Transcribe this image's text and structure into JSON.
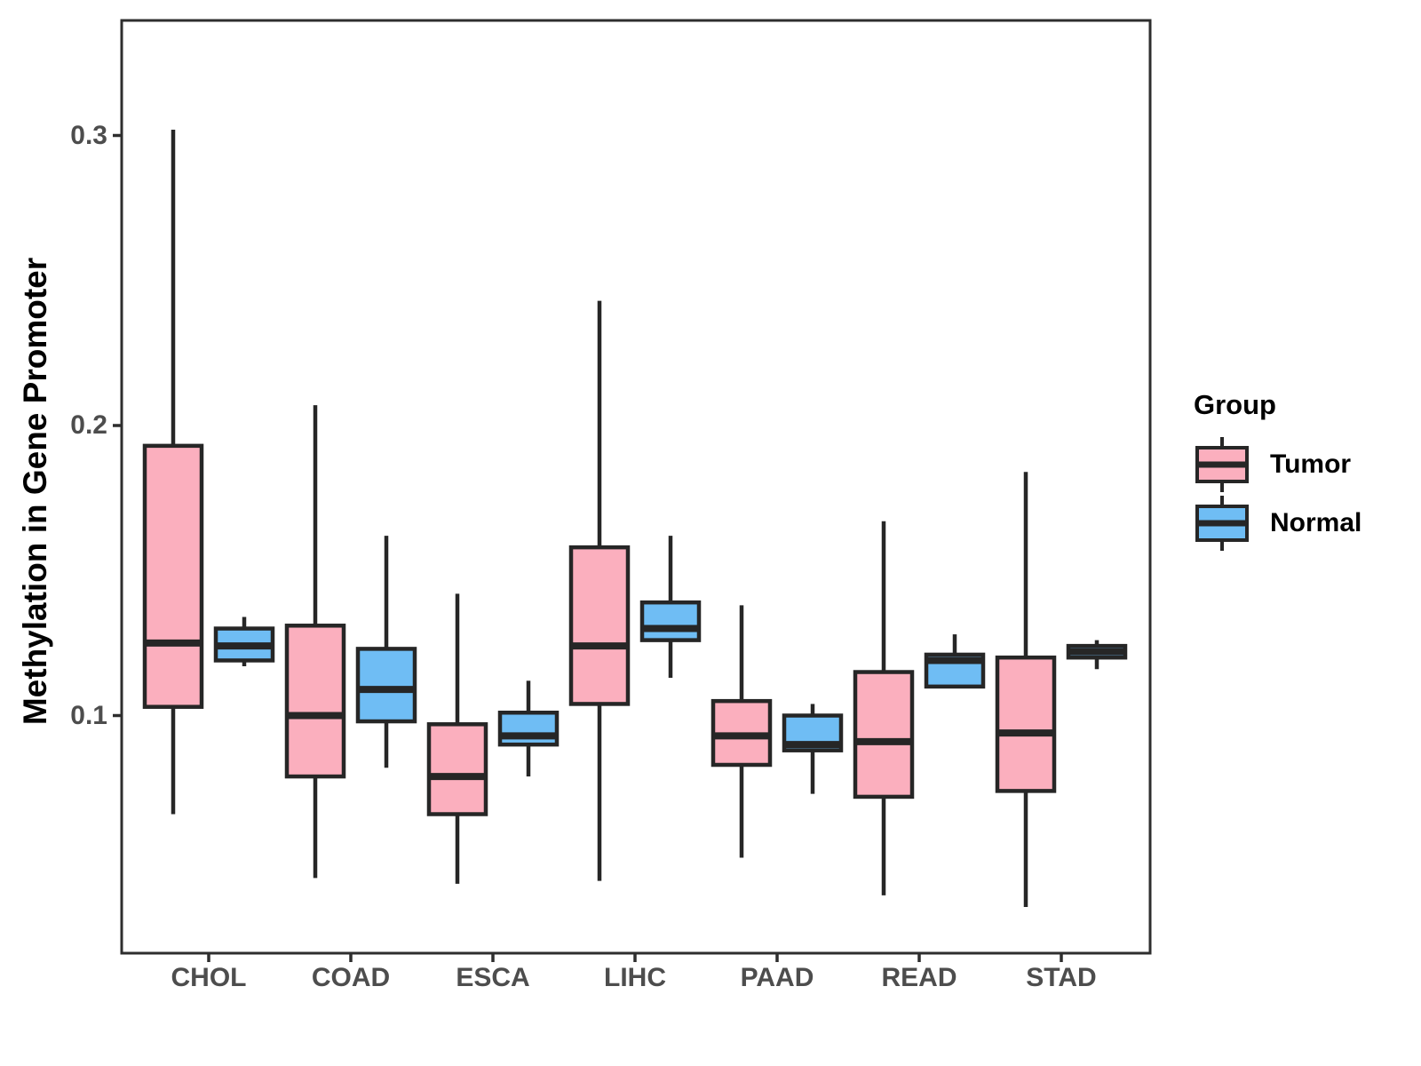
{
  "chart_data": {
    "type": "boxplot",
    "title": "",
    "xlabel": "",
    "ylabel": "Methylation in Gene Promoter",
    "categories": [
      "CHOL",
      "COAD",
      "ESCA",
      "LIHC",
      "PAAD",
      "READ",
      "STAD"
    ],
    "y_ticks": [
      {
        "label": "0.1",
        "value": 0.1
      },
      {
        "label": "0.2",
        "value": 0.2
      },
      {
        "label": "0.3",
        "value": 0.3
      }
    ],
    "ylim": [
      0.018,
      0.34
    ],
    "grid": "off",
    "legend_position": "right",
    "legend": {
      "title": "Group",
      "entries": [
        {
          "label": "Tumor",
          "fill": "#FBAFBE"
        },
        {
          "label": "Normal",
          "fill": "#6FBDF4"
        }
      ]
    },
    "colors": {
      "tumor_fill": "#FBAFBE",
      "normal_fill": "#6FBDF4",
      "box_stroke": "#262626",
      "axis_text": "#4D4D4D",
      "panel_border": "#2E2E2E"
    },
    "series": [
      {
        "name": "Tumor",
        "fill": "#FBAFBE",
        "boxes": [
          {
            "category": "CHOL",
            "min": 0.066,
            "q1": 0.103,
            "median": 0.125,
            "q3": 0.193,
            "max": 0.302
          },
          {
            "category": "COAD",
            "min": 0.044,
            "q1": 0.079,
            "median": 0.1,
            "q3": 0.131,
            "max": 0.207
          },
          {
            "category": "ESCA",
            "min": 0.042,
            "q1": 0.066,
            "median": 0.079,
            "q3": 0.097,
            "max": 0.142
          },
          {
            "category": "LIHC",
            "min": 0.043,
            "q1": 0.104,
            "median": 0.124,
            "q3": 0.158,
            "max": 0.243
          },
          {
            "category": "PAAD",
            "min": 0.051,
            "q1": 0.083,
            "median": 0.093,
            "q3": 0.105,
            "max": 0.138
          },
          {
            "category": "READ",
            "min": 0.038,
            "q1": 0.072,
            "median": 0.091,
            "q3": 0.115,
            "max": 0.167
          },
          {
            "category": "STAD",
            "min": 0.034,
            "q1": 0.074,
            "median": 0.094,
            "q3": 0.12,
            "max": 0.184
          }
        ]
      },
      {
        "name": "Normal",
        "fill": "#6FBDF4",
        "boxes": [
          {
            "category": "CHOL",
            "min": 0.117,
            "q1": 0.119,
            "median": 0.124,
            "q3": 0.13,
            "max": 0.134
          },
          {
            "category": "COAD",
            "min": 0.082,
            "q1": 0.098,
            "median": 0.109,
            "q3": 0.123,
            "max": 0.162
          },
          {
            "category": "ESCA",
            "min": 0.079,
            "q1": 0.09,
            "median": 0.093,
            "q3": 0.101,
            "max": 0.112
          },
          {
            "category": "LIHC",
            "min": 0.113,
            "q1": 0.126,
            "median": 0.13,
            "q3": 0.139,
            "max": 0.162
          },
          {
            "category": "PAAD",
            "min": 0.073,
            "q1": 0.088,
            "median": 0.09,
            "q3": 0.1,
            "max": 0.104
          },
          {
            "category": "READ",
            "min": 0.11,
            "q1": 0.11,
            "median": 0.119,
            "q3": 0.121,
            "max": 0.128
          },
          {
            "category": "STAD",
            "min": 0.116,
            "q1": 0.12,
            "median": 0.122,
            "q3": 0.124,
            "max": 0.126
          }
        ]
      }
    ]
  }
}
